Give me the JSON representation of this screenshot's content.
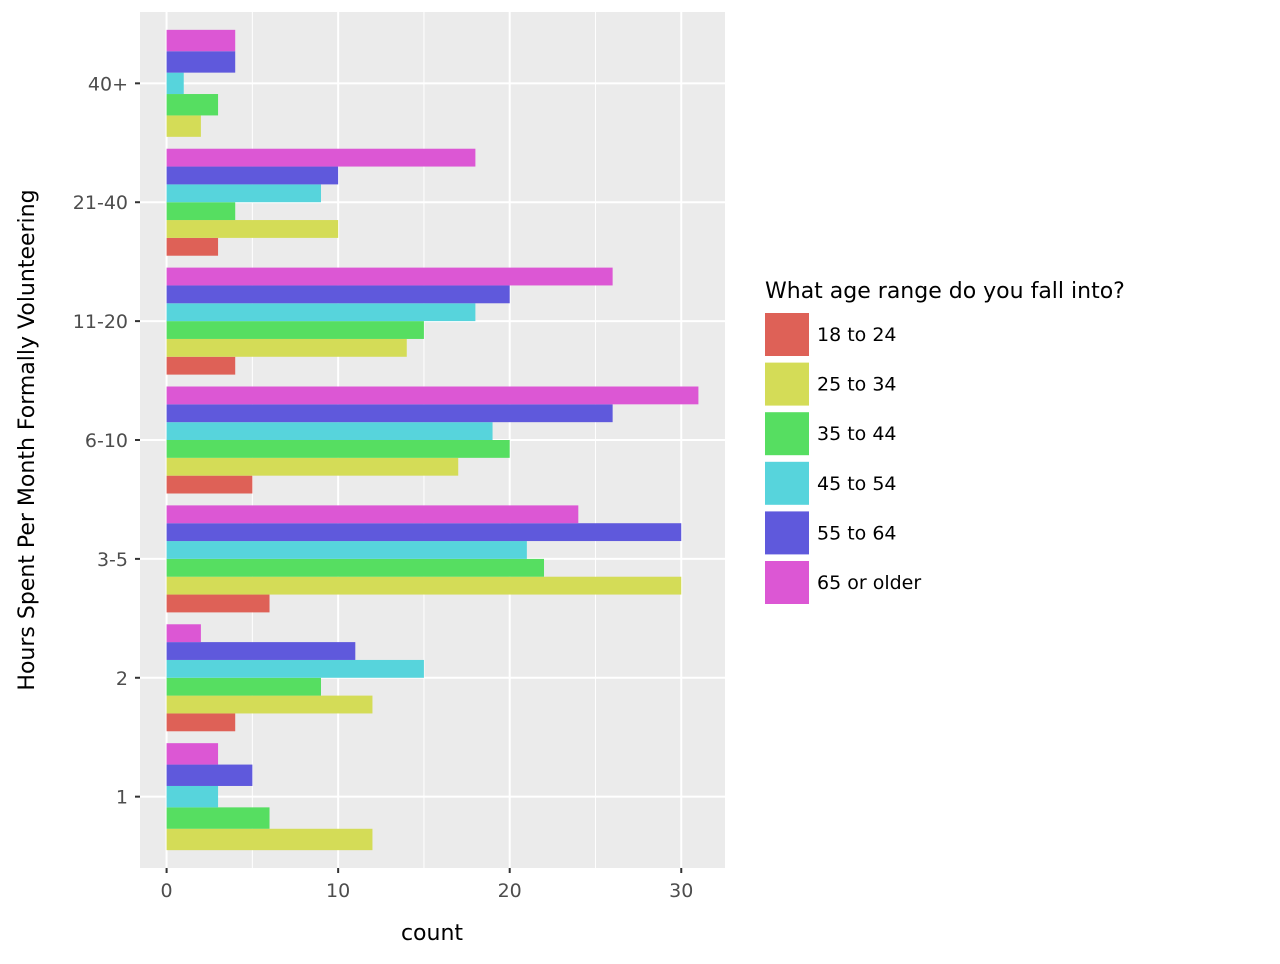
{
  "chart_data": {
    "type": "bar",
    "orientation": "horizontal",
    "title": "",
    "xlabel": "count",
    "ylabel": "Hours Spent Per Month Formally Volunteering",
    "xlim": [
      -1.55,
      32.55
    ],
    "x_ticks": [
      0,
      10,
      20,
      30
    ],
    "x_tick_labels": [
      "0",
      "10",
      "20",
      "30"
    ],
    "categories": [
      "1",
      "2",
      "3-5",
      "6-10",
      "11-20",
      "21-40",
      "40+"
    ],
    "grid": true,
    "legend": {
      "title": "What age range do you fall into?",
      "placement": "right"
    },
    "series": [
      {
        "name": "18 to 24",
        "color": "#DE6157",
        "values": [
          null,
          4,
          6,
          5,
          4,
          3,
          null
        ]
      },
      {
        "name": "25 to 34",
        "color": "#D4DC57",
        "values": [
          12,
          12,
          30,
          17,
          14,
          10,
          2
        ]
      },
      {
        "name": "35 to 44",
        "color": "#56DE61",
        "values": [
          6,
          9,
          22,
          20,
          15,
          4,
          3
        ]
      },
      {
        "name": "45 to 54",
        "color": "#57D4DC",
        "values": [
          3,
          15,
          21,
          19,
          18,
          9,
          1
        ]
      },
      {
        "name": "55 to 64",
        "color": "#5F59DC",
        "values": [
          5,
          11,
          30,
          26,
          20,
          10,
          4
        ]
      },
      {
        "name": "65 or older",
        "color": "#DC57D4",
        "values": [
          3,
          2,
          24,
          31,
          26,
          18,
          4
        ]
      }
    ]
  }
}
